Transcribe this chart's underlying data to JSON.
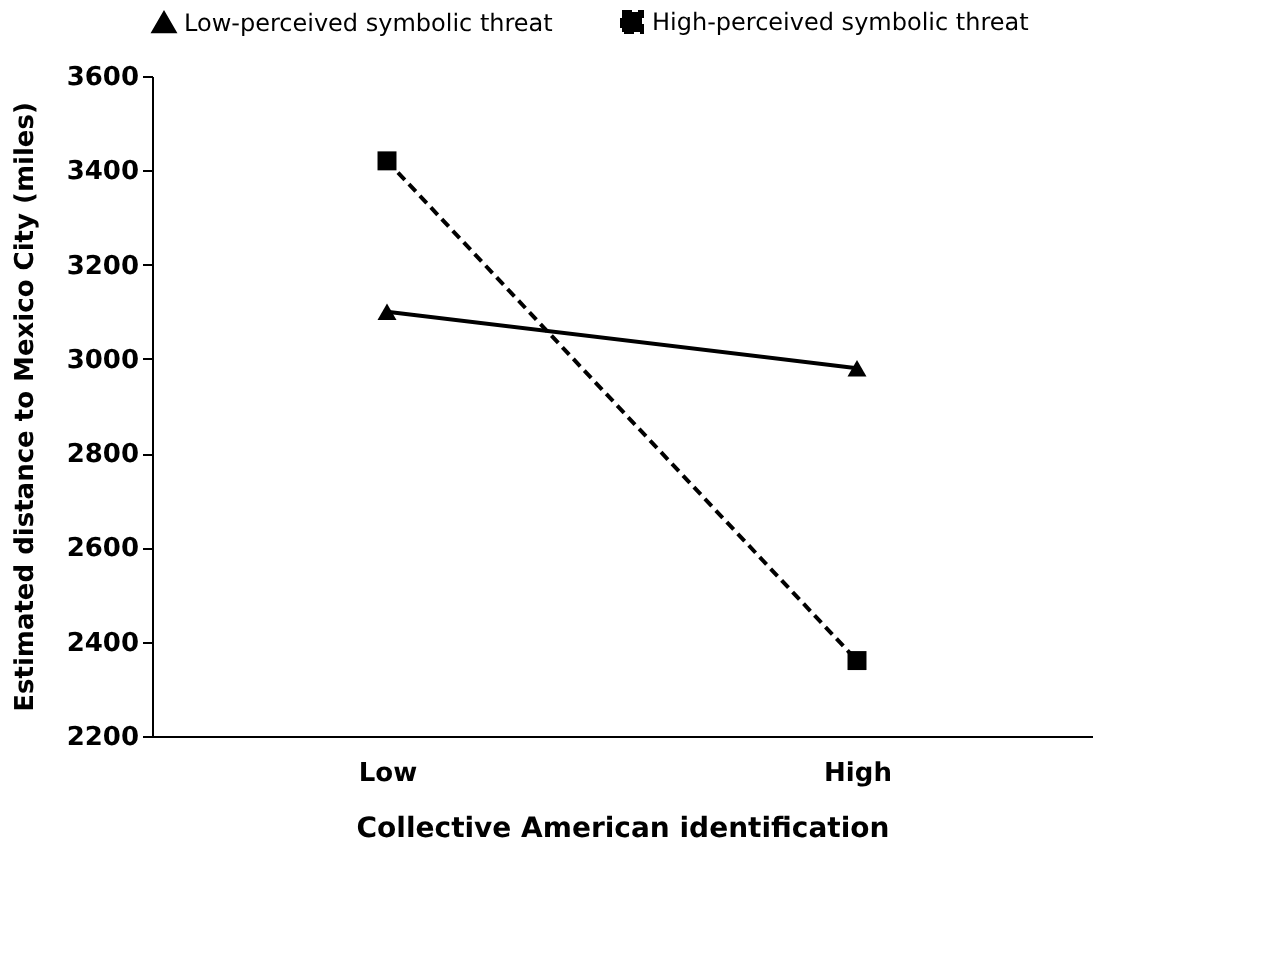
{
  "chart_data": {
    "type": "line",
    "xlabel": "Collective American identification",
    "ylabel": "Estimated distance to Mexico City (miles)",
    "categories": [
      "Low",
      "High"
    ],
    "series": [
      {
        "name": "Low-perceived symbolic threat",
        "color": "#000000",
        "values": [
          3100,
          2980
        ],
        "marker": "triangle",
        "line_style": "solid"
      },
      {
        "name": "High-perceived symbolic threat",
        "color": "#000000",
        "values": [
          3420,
          2360
        ],
        "marker": "square",
        "line_style": "dashed"
      }
    ],
    "ylim": [
      2200,
      3600
    ],
    "yticks": [
      2200,
      2400,
      2600,
      2800,
      3000,
      3200,
      3400,
      3600
    ],
    "grid": false,
    "legend": "top"
  }
}
